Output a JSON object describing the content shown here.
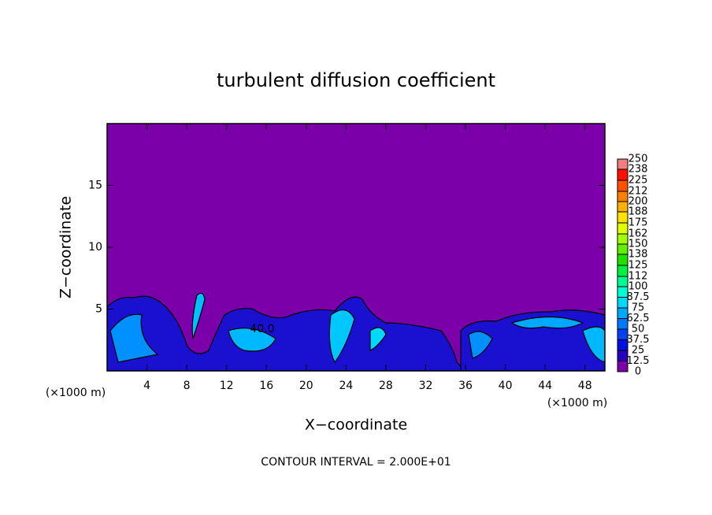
{
  "chart_data": {
    "type": "contour",
    "title": "turbulent diffusion coefficient",
    "x_label": "X−coordinate",
    "y_label": "Z−coordinate",
    "x_scale_label": "(×1000 m)",
    "y_scale_label": "(×1000 m)",
    "footer": "CONTOUR INTERVAL = 2.000E+01",
    "contour_label": "40.0",
    "background_color": "#7b00aa",
    "xlim": [
      0,
      50
    ],
    "xticks": [
      4,
      8,
      12,
      16,
      20,
      24,
      28,
      32,
      36,
      40,
      44,
      48
    ],
    "ylim": [
      0,
      20
    ],
    "yticks": [
      5,
      10,
      15
    ],
    "colorbar": {
      "ticks": [
        0,
        12.5,
        25,
        37.5,
        50,
        62.5,
        75,
        87.5,
        100,
        112,
        125,
        138,
        150,
        162,
        175,
        188,
        200,
        212,
        225,
        238,
        250
      ],
      "colors": [
        "#7b00aa",
        "#2a00c0",
        "#0010e0",
        "#0040ff",
        "#0078ff",
        "#00a8ff",
        "#00d8ff",
        "#00ffd0",
        "#00ff90",
        "#00f040",
        "#20e000",
        "#60f000",
        "#a0ff00",
        "#e0ff00",
        "#ffe000",
        "#ffb000",
        "#ff8000",
        "#ff5000",
        "#ff1000",
        "#f08080"
      ]
    }
  }
}
